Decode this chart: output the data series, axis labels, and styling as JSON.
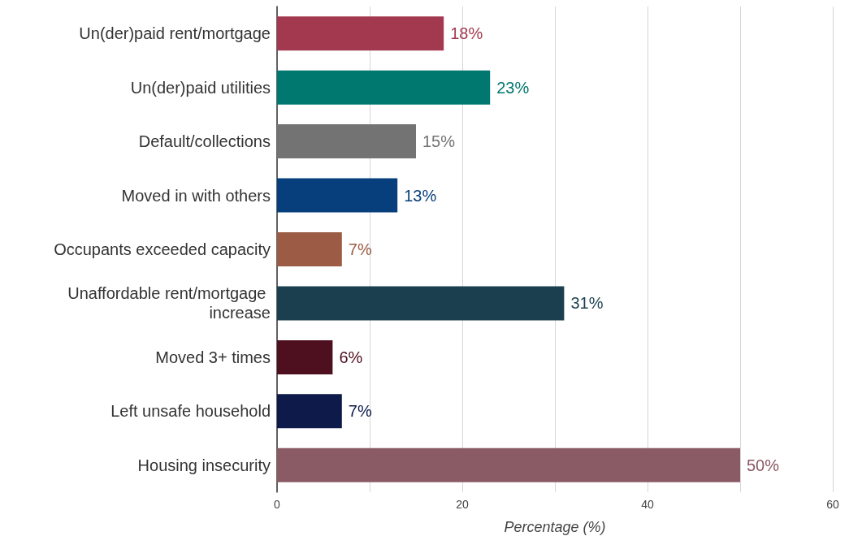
{
  "chart_data": {
    "type": "bar",
    "orientation": "horizontal",
    "xlabel": "Percentage (%)",
    "categories": [
      "Un(der)paid rent/mortgage",
      "Un(der)paid utilities",
      "Default/collections",
      "Moved in with others",
      "Occupants exceeded capacity",
      "Unaffordable rent/mortgage increase",
      "Moved 3+ times",
      "Left unsafe household",
      "Housing insecurity"
    ],
    "values": [
      18,
      23,
      15,
      13,
      7,
      31,
      6,
      7,
      50
    ],
    "colors": [
      "#a3394f",
      "#00776f",
      "#737373",
      "#073f7d",
      "#9c5b44",
      "#1c3f4f",
      "#4e0f1f",
      "#0d1a4a",
      "#8a5a65"
    ],
    "value_labels": [
      "18%",
      "23%",
      "15%",
      "13%",
      "7%",
      "31%",
      "6%",
      "7%",
      "50%"
    ],
    "xlim": [
      0,
      60
    ],
    "xticks": [
      0,
      {
        "value": 10,
        "label": null
      },
      20,
      {
        "value": 30,
        "label": null
      },
      40,
      {
        "value": 50,
        "label": null
      },
      60
    ],
    "grid": "x"
  }
}
